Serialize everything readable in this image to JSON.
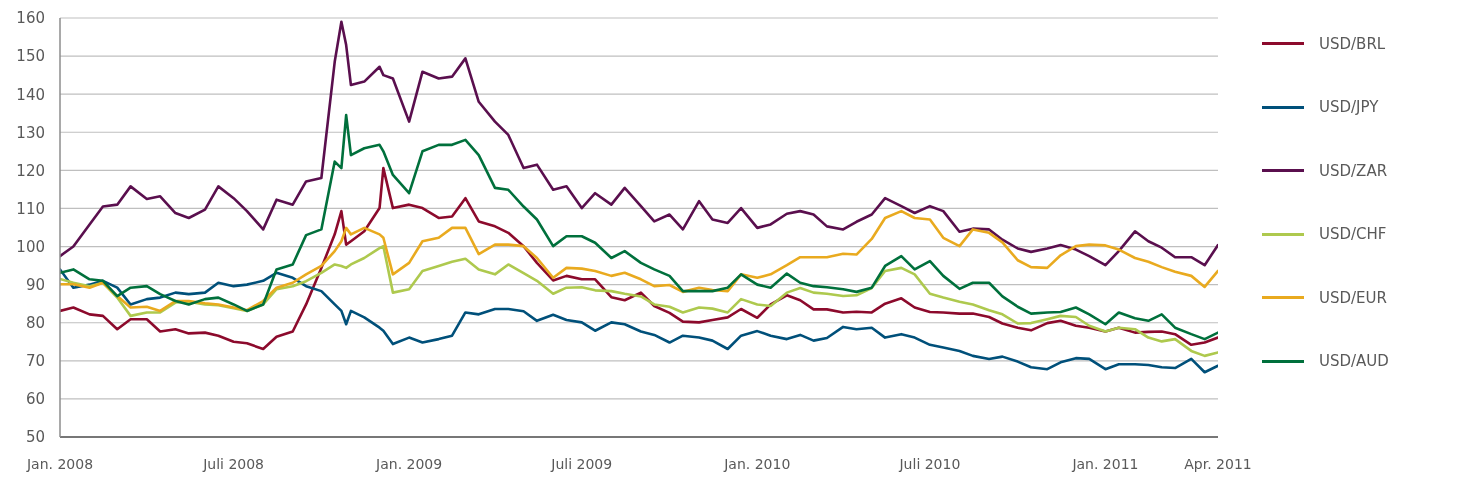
{
  "chart_data": {
    "type": "line",
    "x": [
      "2008-01-01",
      "2008-01-15",
      "2008-02-01",
      "2008-02-15",
      "2008-03-01",
      "2008-03-15",
      "2008-04-01",
      "2008-04-15",
      "2008-05-01",
      "2008-05-15",
      "2008-06-01",
      "2008-06-15",
      "2008-07-01",
      "2008-07-15",
      "2008-08-01",
      "2008-08-15",
      "2008-09-01",
      "2008-09-15",
      "2008-10-01",
      "2008-10-15",
      "2008-10-22",
      "2008-10-27",
      "2008-11-01",
      "2008-11-15",
      "2008-12-01",
      "2008-12-05",
      "2008-12-15",
      "2009-01-01",
      "2009-01-15",
      "2009-02-01",
      "2009-02-15",
      "2009-03-01",
      "2009-03-15",
      "2009-04-01",
      "2009-04-15",
      "2009-05-01",
      "2009-05-15",
      "2009-06-01",
      "2009-06-15",
      "2009-07-01",
      "2009-07-15",
      "2009-08-01",
      "2009-08-15",
      "2009-09-01",
      "2009-09-15",
      "2009-10-01",
      "2009-10-15",
      "2009-11-01",
      "2009-11-15",
      "2009-12-01",
      "2009-12-15",
      "2010-01-01",
      "2010-01-15",
      "2010-02-01",
      "2010-02-15",
      "2010-03-01",
      "2010-03-15",
      "2010-04-01",
      "2010-04-15",
      "2010-05-01",
      "2010-05-15",
      "2010-06-01",
      "2010-06-15",
      "2010-07-01",
      "2010-07-15",
      "2010-08-01",
      "2010-08-15",
      "2010-09-01",
      "2010-09-15",
      "2010-10-01",
      "2010-10-15",
      "2010-11-01",
      "2010-11-15",
      "2010-12-01",
      "2010-12-15",
      "2011-01-01",
      "2011-01-15",
      "2011-02-01",
      "2011-02-15",
      "2011-03-01",
      "2011-03-15",
      "2011-04-01",
      "2011-04-15",
      "2011-04-29"
    ],
    "series": [
      {
        "name": "USD/BRL",
        "color": "#8c0a2c",
        "values": [
          83.1,
          84,
          82.2,
          81.8,
          78.3,
          80.9,
          80.9,
          77.7,
          78.3,
          77.2,
          77.4,
          76.6,
          75,
          74.6,
          73.1,
          76.3,
          77.7,
          84.8,
          94.4,
          103.2,
          109.3,
          100.5,
          101.4,
          104,
          110.1,
          120.6,
          110.1,
          111,
          110.1,
          107.5,
          107.9,
          112.7,
          106.6,
          105.3,
          103.6,
          100.1,
          95.7,
          91.1,
          92.3,
          91.4,
          91.4,
          86.7,
          85.9,
          87.9,
          84.4,
          82.6,
          80.3,
          80.1,
          80.7,
          81.4,
          83.6,
          81.3,
          84.8,
          87.2,
          85.9,
          83.5,
          83.5,
          82.7,
          82.9,
          82.7,
          85,
          86.4,
          84,
          82.8,
          82.7,
          82.4,
          82.4,
          81.5,
          79.8,
          78.7,
          78,
          79.9,
          80.5,
          79.2,
          78.7,
          77.7,
          78.7,
          77.4,
          77.6,
          77.7,
          77,
          74.2,
          74.8,
          76.1
        ]
      },
      {
        "name": "USD/JPY",
        "color": "#00507a",
        "values": [
          94,
          89.2,
          90,
          91,
          89.2,
          84.8,
          86.2,
          86.6,
          87.9,
          87.5,
          87.9,
          90.5,
          89.6,
          90,
          91,
          93.1,
          91.8,
          89.6,
          88.3,
          84.8,
          83.1,
          79.6,
          83.1,
          81.4,
          78.7,
          77.9,
          74.4,
          76.1,
          74.8,
          75.7,
          76.6,
          82.7,
          82.2,
          83.6,
          83.6,
          83,
          80.5,
          82.1,
          80.7,
          80.1,
          77.9,
          80.1,
          79.6,
          77.7,
          76.8,
          74.8,
          76.6,
          76.1,
          75.3,
          73.1,
          76.6,
          77.8,
          76.6,
          75.7,
          76.8,
          75.3,
          76,
          78.9,
          78.3,
          78.7,
          76.1,
          77,
          76.1,
          74.2,
          73.5,
          72.6,
          71.3,
          70.5,
          71.1,
          69.8,
          68.3,
          67.8,
          69.6,
          70.7,
          70.5,
          67.8,
          69.1,
          69.1,
          68.9,
          68.3,
          68.1,
          70.5,
          67,
          68.7
        ]
      },
      {
        "name": "USD/ZAR",
        "color": "#5a0f4e",
        "values": [
          97.5,
          100,
          105.8,
          110.5,
          111,
          115.8,
          112.5,
          113.2,
          108.8,
          107.5,
          109.7,
          115.8,
          112.7,
          109.3,
          104.5,
          112.3,
          111,
          117.1,
          118,
          148.5,
          159,
          152.9,
          142.4,
          143.3,
          147.2,
          145,
          144.1,
          132.8,
          145.9,
          144.1,
          144.6,
          149.4,
          138,
          132.8,
          129.3,
          120.6,
          121.5,
          114.9,
          115.8,
          110.1,
          114,
          111,
          115.4,
          110.6,
          106.6,
          108.4,
          104.5,
          111.9,
          107.1,
          106.2,
          110.1,
          104.9,
          105.8,
          108.6,
          109.3,
          108.4,
          105.3,
          104.5,
          106.5,
          108.4,
          112.7,
          110.6,
          108.8,
          110.6,
          109.3,
          103.9,
          104.7,
          104.5,
          101.8,
          99.5,
          98.6,
          99.5,
          100.4,
          99.2,
          97.5,
          95.1,
          98.8,
          104,
          101.4,
          99.7,
          97.2,
          97.2,
          95.1,
          100.4
        ]
      },
      {
        "name": "USD/CHF",
        "color": "#aec94e",
        "values": [
          91.5,
          90.5,
          89.6,
          90.5,
          86.6,
          81.8,
          82.7,
          82.7,
          85.3,
          85.5,
          84.8,
          84.6,
          83.8,
          83.1,
          84.8,
          88.8,
          89.6,
          90.9,
          93.1,
          95.3,
          94.9,
          94.4,
          95.3,
          97,
          99.6,
          100.1,
          87.9,
          88.8,
          93.6,
          94.9,
          96,
          96.8,
          94,
          92.7,
          95.3,
          93,
          91,
          87.6,
          89.2,
          89.3,
          88.5,
          88.3,
          87.6,
          86.9,
          84.8,
          84.2,
          82.7,
          84,
          83.7,
          82.7,
          86.2,
          84.8,
          84.4,
          87.9,
          89.1,
          87.9,
          87.6,
          87,
          87.2,
          89.1,
          93.6,
          94.4,
          92.7,
          87.6,
          86.6,
          85.5,
          84.8,
          83.3,
          82.2,
          79.8,
          79.9,
          80.9,
          81.8,
          81.5,
          79.2,
          77.7,
          78.7,
          78.3,
          76.1,
          75.1,
          75.7,
          72.6,
          71.3,
          72.2
        ]
      },
      {
        "name": "USD/EUR",
        "color": "#e9aa1f",
        "values": [
          90.1,
          90.1,
          89.2,
          90.5,
          87,
          84,
          84.2,
          83.1,
          85.7,
          85.7,
          85.1,
          84.8,
          84,
          83.3,
          85.7,
          89.2,
          90.5,
          92.7,
          94.9,
          98.8,
          101.4,
          104.9,
          103.2,
          104.9,
          103.2,
          102.3,
          92.7,
          95.7,
          101.4,
          102.3,
          104.9,
          104.9,
          98,
          100.5,
          100.5,
          100.1,
          97,
          91.8,
          94.4,
          94.2,
          93.6,
          92.3,
          93.1,
          91.4,
          89.6,
          89.9,
          88.1,
          89.2,
          88.6,
          88.3,
          92.7,
          91.8,
          92.7,
          95.1,
          97.2,
          97.2,
          97.2,
          98.1,
          97.9,
          102,
          107.5,
          109.3,
          107.5,
          107.1,
          102.3,
          100.1,
          104.5,
          103.6,
          101.1,
          96.4,
          94.6,
          94.4,
          97.7,
          100.1,
          100.5,
          100.3,
          99.2,
          97,
          96,
          94.6,
          93.4,
          92.3,
          89.4,
          93.6
        ]
      },
      {
        "name": "USD/AUD",
        "color": "#00703c",
        "values": [
          93.1,
          94,
          91.4,
          91,
          87,
          89.2,
          89.6,
          87.5,
          85.7,
          84.8,
          86.2,
          86.6,
          84.8,
          83.1,
          84.8,
          94,
          95.3,
          103,
          104.5,
          122.3,
          120.6,
          134.5,
          124,
          125.8,
          126.7,
          125,
          118.8,
          114,
          125,
          126.7,
          126.7,
          128,
          124,
          115.4,
          114.9,
          110.5,
          107.1,
          100.1,
          102.7,
          102.7,
          101,
          97,
          98.8,
          95.7,
          94,
          92.3,
          88.3,
          88.3,
          88.3,
          89.2,
          92.7,
          90,
          89.2,
          92.9,
          90.5,
          89.6,
          89.3,
          88.8,
          88.1,
          89.2,
          94.9,
          97.5,
          94,
          96.2,
          92.3,
          88.9,
          90.5,
          90.5,
          86.9,
          84.2,
          82.4,
          82.7,
          82.8,
          84,
          82.2,
          79.6,
          82.7,
          81.2,
          80.5,
          82.2,
          78.7,
          77,
          75.7,
          77.4
        ]
      }
    ],
    "xlim": [
      "2008-01-01",
      "2011-04-29"
    ],
    "xticks": [
      {
        "value": "2008-01-01",
        "label": "Jan. 2008"
      },
      {
        "value": "2008-07-01",
        "label": "Juli 2008"
      },
      {
        "value": "2009-01-01",
        "label": "Jan. 2009"
      },
      {
        "value": "2009-07-01",
        "label": "Juli 2009"
      },
      {
        "value": "2010-01-01",
        "label": "Jan. 2010"
      },
      {
        "value": "2010-07-01",
        "label": "Juli 2010"
      },
      {
        "value": "2011-01-01",
        "label": "Jan. 2011"
      },
      {
        "value": "2011-04-29",
        "label": "Apr. 2011"
      }
    ],
    "ylim": [
      50,
      160
    ],
    "yticks": [
      50,
      60,
      70,
      80,
      90,
      100,
      110,
      120,
      130,
      140,
      150,
      160
    ],
    "grid": "y",
    "legend": "right",
    "marker": "none",
    "line_style": "solid"
  }
}
